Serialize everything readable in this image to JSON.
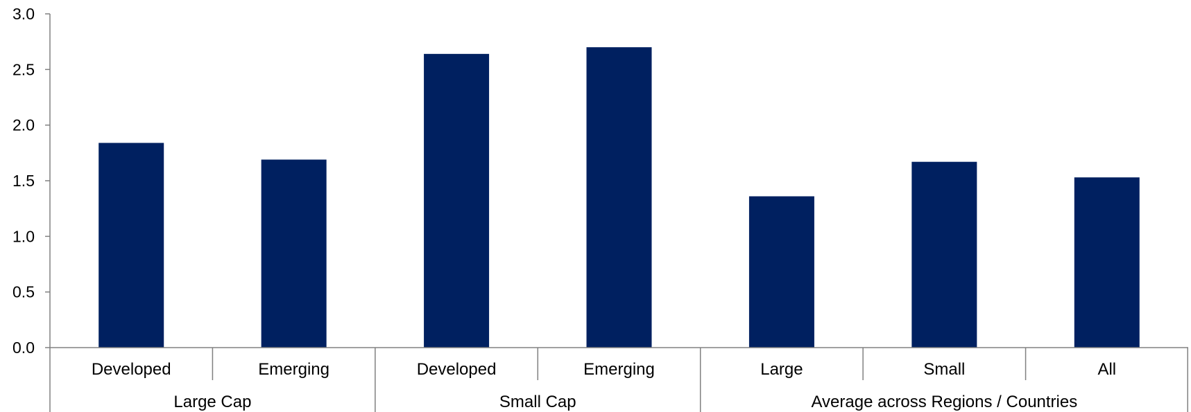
{
  "chart_data": {
    "type": "bar",
    "title": "",
    "xlabel": "",
    "ylabel": "",
    "ylim": [
      0,
      3.0
    ],
    "yticks": [
      "0.0",
      "0.5",
      "1.0",
      "1.5",
      "2.0",
      "2.5",
      "3.0"
    ],
    "grid": false,
    "legend": "none",
    "bar_color": "#002060",
    "categories": [
      "Developed",
      "Emerging",
      "Developed",
      "Emerging",
      "Large",
      "Small",
      "All"
    ],
    "groups": [
      {
        "label": "Large Cap",
        "count": 2
      },
      {
        "label": "Small Cap",
        "count": 2
      },
      {
        "label": "Average across Regions / Countries",
        "count": 3
      }
    ],
    "values": [
      1.84,
      1.69,
      2.64,
      2.7,
      1.36,
      1.67,
      1.53
    ]
  }
}
